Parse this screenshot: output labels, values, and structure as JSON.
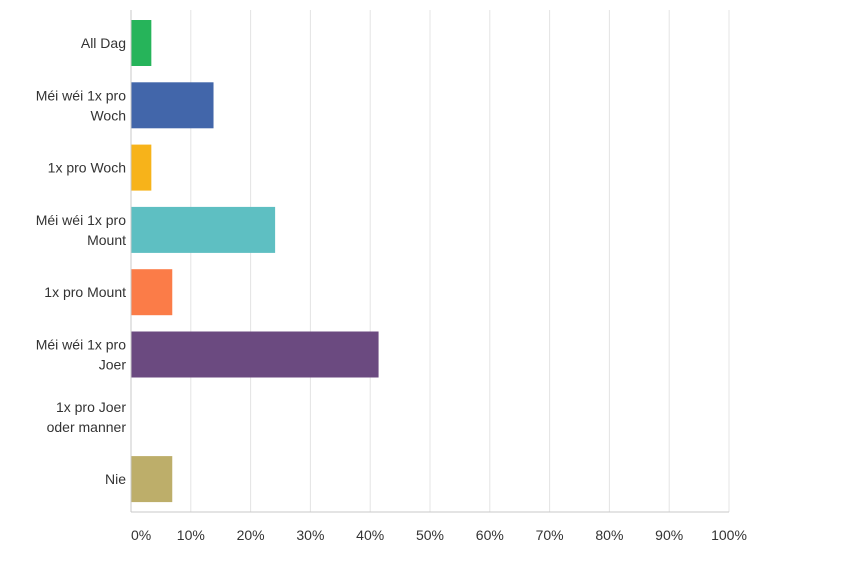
{
  "chart_data": {
    "type": "bar",
    "orientation": "horizontal",
    "title": "",
    "xlabel": "",
    "ylabel": "",
    "xlim": [
      0,
      100
    ],
    "grid": true,
    "categories": [
      "All Dag",
      "Méi wéi 1x pro Woch",
      "1x pro Woch",
      "Méi wéi 1x pro Mount",
      "1x pro Mount",
      "Méi wéi 1x pro Joer",
      "1x pro Joer oder manner",
      "Nie"
    ],
    "category_lines": [
      [
        "All Dag"
      ],
      [
        "Méi wéi 1x pro",
        "Woch"
      ],
      [
        "1x pro Woch"
      ],
      [
        "Méi wéi 1x pro",
        "Mount"
      ],
      [
        "1x pro Mount"
      ],
      [
        "Méi wéi 1x pro",
        "Joer"
      ],
      [
        "1x pro Joer",
        "oder manner"
      ],
      [
        "Nie"
      ]
    ],
    "values": [
      3.4,
      13.8,
      3.4,
      24.1,
      6.9,
      41.4,
      0,
      6.9
    ],
    "colors": [
      "#26b45a",
      "#4266aa",
      "#f7b31a",
      "#5ebfc2",
      "#fb7c48",
      "#6b4a80",
      "#8aa0b0",
      "#bdae6a"
    ],
    "ticks": [
      0,
      10,
      20,
      30,
      40,
      50,
      60,
      70,
      80,
      90,
      100
    ],
    "tick_labels": [
      "0%",
      "10%",
      "20%",
      "30%",
      "40%",
      "50%",
      "60%",
      "70%",
      "80%",
      "90%",
      "100%"
    ],
    "grid_color": "#e4e4e4",
    "axis_color": "#c8c8c8",
    "label_color": "#333333"
  }
}
